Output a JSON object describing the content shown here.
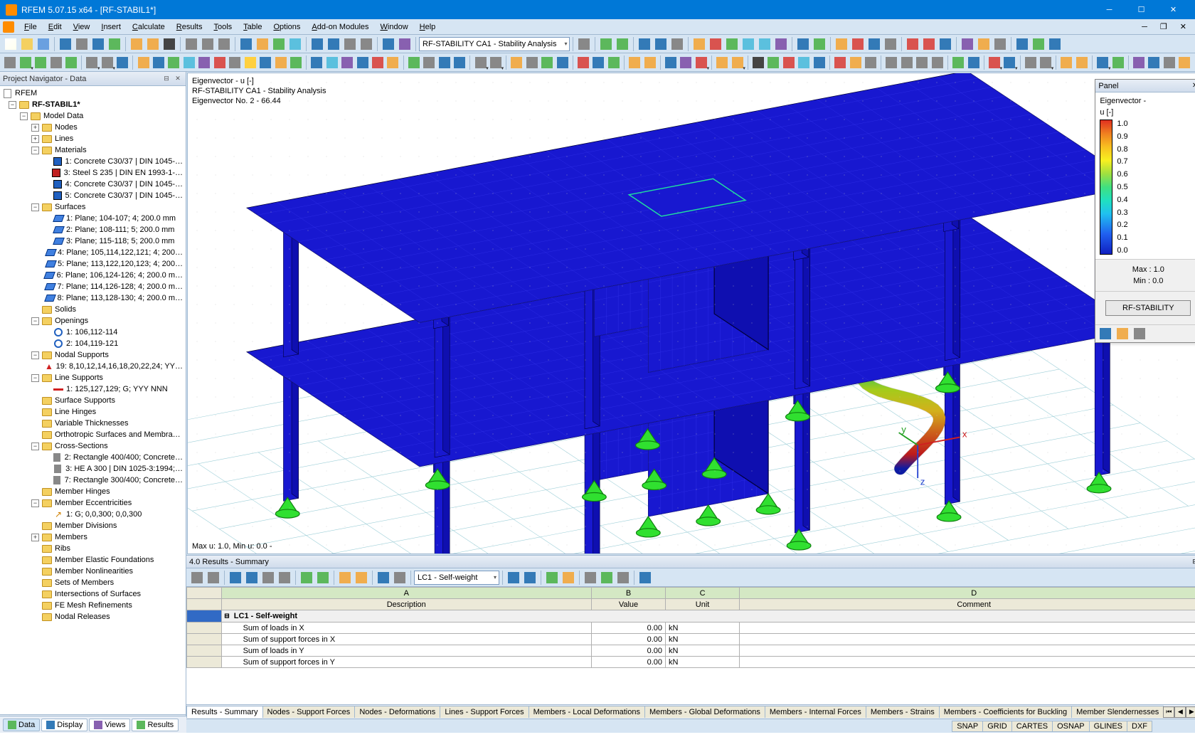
{
  "window": {
    "title": "RFEM 5.07.15 x64 - [RF-STABIL1*]",
    "minimize": "─",
    "maximize": "☐",
    "close": "✕"
  },
  "menu": {
    "items": [
      "File",
      "Edit",
      "View",
      "Insert",
      "Calculate",
      "Results",
      "Tools",
      "Table",
      "Options",
      "Add-on Modules",
      "Window",
      "Help"
    ]
  },
  "toolbar1": {
    "combo_label": "RF-STABILITY CA1 - Stability Analysis"
  },
  "navigator": {
    "title": "Project Navigator - Data",
    "root": "RFEM",
    "model": "RF-STABIL1*",
    "tree": [
      {
        "d": 1,
        "exp": "-",
        "ico": "fold",
        "t": "Model Data"
      },
      {
        "d": 2,
        "exp": "+",
        "ico": "fold",
        "t": "Nodes"
      },
      {
        "d": 2,
        "exp": "+",
        "ico": "fold",
        "t": "Lines"
      },
      {
        "d": 2,
        "exp": "-",
        "ico": "fold",
        "t": "Materials"
      },
      {
        "d": 3,
        "exp": "",
        "ico": "mat",
        "c": "#2060c0",
        "t": "1: Concrete C30/37 | DIN 1045-…"
      },
      {
        "d": 3,
        "exp": "",
        "ico": "mat",
        "c": "#c02020",
        "t": "3: Steel S 235 | DIN EN 1993-1-…"
      },
      {
        "d": 3,
        "exp": "",
        "ico": "mat",
        "c": "#2060c0",
        "t": "4: Concrete C30/37 | DIN 1045-…"
      },
      {
        "d": 3,
        "exp": "",
        "ico": "mat",
        "c": "#2060c0",
        "t": "5: Concrete C30/37 | DIN 1045-…"
      },
      {
        "d": 2,
        "exp": "-",
        "ico": "fold",
        "t": "Surfaces"
      },
      {
        "d": 3,
        "exp": "",
        "ico": "surf",
        "t": "1: Plane; 104-107; 4; 200.0 mm"
      },
      {
        "d": 3,
        "exp": "",
        "ico": "surf",
        "t": "2: Plane; 108-111; 5; 200.0 mm"
      },
      {
        "d": 3,
        "exp": "",
        "ico": "surf",
        "t": "3: Plane; 115-118; 5; 200.0 mm"
      },
      {
        "d": 3,
        "exp": "",
        "ico": "surf",
        "t": "4: Plane; 105,114,122,121; 4; 200…"
      },
      {
        "d": 3,
        "exp": "",
        "ico": "surf",
        "t": "5: Plane; 113,122,120,123; 4; 200…"
      },
      {
        "d": 3,
        "exp": "",
        "ico": "surf",
        "t": "6: Plane; 106,124-126; 4; 200.0 m…"
      },
      {
        "d": 3,
        "exp": "",
        "ico": "surf",
        "t": "7: Plane; 114,126-128; 4; 200.0 m…"
      },
      {
        "d": 3,
        "exp": "",
        "ico": "surf",
        "t": "8: Plane; 113,128-130; 4; 200.0 m…"
      },
      {
        "d": 2,
        "exp": "",
        "ico": "fold",
        "t": "Solids"
      },
      {
        "d": 2,
        "exp": "-",
        "ico": "fold",
        "t": "Openings"
      },
      {
        "d": 3,
        "exp": "",
        "ico": "open",
        "t": "1: 106,112-114"
      },
      {
        "d": 3,
        "exp": "",
        "ico": "open",
        "t": "2: 104,119-121"
      },
      {
        "d": 2,
        "exp": "-",
        "ico": "fold",
        "t": "Nodal Supports"
      },
      {
        "d": 3,
        "exp": "",
        "ico": "sup",
        "t": "19: 8,10,12,14,16,18,20,22,24; YY…"
      },
      {
        "d": 2,
        "exp": "-",
        "ico": "fold",
        "t": "Line Supports"
      },
      {
        "d": 3,
        "exp": "",
        "ico": "lsup",
        "t": "1: 125,127,129; G; YYY NNN"
      },
      {
        "d": 2,
        "exp": "",
        "ico": "fold",
        "t": "Surface Supports"
      },
      {
        "d": 2,
        "exp": "",
        "ico": "fold",
        "t": "Line Hinges"
      },
      {
        "d": 2,
        "exp": "",
        "ico": "fold",
        "t": "Variable Thicknesses"
      },
      {
        "d": 2,
        "exp": "",
        "ico": "fold",
        "t": "Orthotropic Surfaces and Membra…"
      },
      {
        "d": 2,
        "exp": "-",
        "ico": "fold",
        "t": "Cross-Sections"
      },
      {
        "d": 3,
        "exp": "",
        "ico": "cs",
        "t": "2: Rectangle 400/400; Concrete…"
      },
      {
        "d": 3,
        "exp": "",
        "ico": "cs",
        "t": "3: HE A 300 | DIN 1025-3:1994;…"
      },
      {
        "d": 3,
        "exp": "",
        "ico": "cs",
        "t": "7: Rectangle 300/400; Concrete…"
      },
      {
        "d": 2,
        "exp": "",
        "ico": "fold",
        "t": "Member Hinges"
      },
      {
        "d": 2,
        "exp": "-",
        "ico": "fold",
        "t": "Member Eccentricities"
      },
      {
        "d": 3,
        "exp": "",
        "ico": "ecc",
        "t": "1: G; 0,0,300; 0,0,300"
      },
      {
        "d": 2,
        "exp": "",
        "ico": "fold",
        "t": "Member Divisions"
      },
      {
        "d": 2,
        "exp": "+",
        "ico": "fold",
        "t": "Members"
      },
      {
        "d": 2,
        "exp": "",
        "ico": "fold",
        "t": "Ribs"
      },
      {
        "d": 2,
        "exp": "",
        "ico": "fold",
        "t": "Member Elastic Foundations"
      },
      {
        "d": 2,
        "exp": "",
        "ico": "fold",
        "t": "Member Nonlinearities"
      },
      {
        "d": 2,
        "exp": "",
        "ico": "fold",
        "t": "Sets of Members"
      },
      {
        "d": 2,
        "exp": "",
        "ico": "fold",
        "t": "Intersections of Surfaces"
      },
      {
        "d": 2,
        "exp": "",
        "ico": "fold",
        "t": "FE Mesh Refinements"
      },
      {
        "d": 2,
        "exp": "",
        "ico": "fold",
        "t": "Nodal Releases"
      }
    ],
    "bottom_tabs": [
      {
        "label": "Data",
        "active": true,
        "color": "#5cb85c"
      },
      {
        "label": "Display",
        "active": false,
        "color": "#337ab7"
      },
      {
        "label": "Views",
        "active": false,
        "color": "#8860b0"
      },
      {
        "label": "Results",
        "active": false,
        "color": "#5cb85c"
      }
    ]
  },
  "viewport": {
    "line1": "Eigenvector - u [-]",
    "line2": "RF-STABILITY CA1 - Stability Analysis",
    "line3": "Eigenvector No. 2  -  66.44",
    "bottom": "Max u: 1.0, Min u: 0.0 -",
    "background": "#ffffff",
    "model_color": "#1818d0",
    "support_color": "#30e030",
    "axes": {
      "x": "#d02020",
      "y": "#20a020",
      "z": "#2040d0"
    }
  },
  "panel": {
    "title": "Panel",
    "label1": "Eigenvector -",
    "label2": "u [-]",
    "ticks": [
      "1.0",
      "0.9",
      "0.8",
      "0.7",
      "0.6",
      "0.5",
      "0.4",
      "0.3",
      "0.2",
      "0.1",
      "0.0"
    ],
    "max_lbl": "Max  :  1.0",
    "min_lbl": "Min  :  0.0",
    "button": "RF-STABILITY"
  },
  "results": {
    "title": "4.0 Results - Summary",
    "combo": "LC1 - Self-weight",
    "col_letters": [
      "A",
      "B",
      "C",
      "D"
    ],
    "columns": [
      "Description",
      "Value",
      "Unit",
      "Comment"
    ],
    "group_row": "LC1 - Self-weight",
    "rows": [
      {
        "desc": "Sum of loads in X",
        "val": "0.00",
        "unit": "kN",
        "comment": ""
      },
      {
        "desc": "Sum of support forces in X",
        "val": "0.00",
        "unit": "kN",
        "comment": ""
      },
      {
        "desc": "Sum of loads in Y",
        "val": "0.00",
        "unit": "kN",
        "comment": ""
      },
      {
        "desc": "Sum of support forces in Y",
        "val": "0.00",
        "unit": "kN",
        "comment": ""
      }
    ],
    "tabs": [
      "Results - Summary",
      "Nodes - Support Forces",
      "Nodes - Deformations",
      "Lines - Support Forces",
      "Members - Local Deformations",
      "Members - Global Deformations",
      "Members - Internal Forces",
      "Members - Strains",
      "Members - Coefficients for Buckling",
      "Member Slendernesses"
    ]
  },
  "status": {
    "toggles": [
      "SNAP",
      "GRID",
      "CARTES",
      "OSNAP",
      "GLINES",
      "DXF"
    ]
  }
}
